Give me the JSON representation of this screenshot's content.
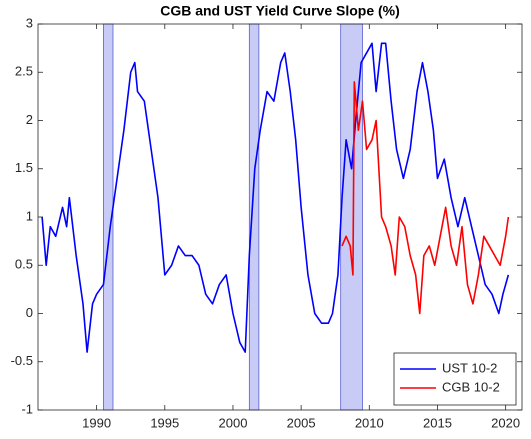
{
  "chart_data": {
    "type": "line",
    "title": "CGB and UST Yield Curve Slope (%)",
    "xlim": [
      1985.7,
      2021.2
    ],
    "ylim": [
      -1,
      3
    ],
    "xticks": [
      1990,
      1995,
      2000,
      2005,
      2010,
      2015,
      2020
    ],
    "yticks": [
      -1,
      -0.5,
      0,
      0.5,
      1,
      1.5,
      2,
      2.5,
      3
    ],
    "grid": false,
    "legend": "lower right",
    "shade_color": "#c8cbf5",
    "shaded_regions": [
      [
        1990.5,
        1991.2
      ],
      [
        2001.2,
        2001.9
      ],
      [
        2007.9,
        2009.5
      ]
    ],
    "series": [
      {
        "name": "UST 10-2",
        "color": "#0000ff",
        "x": [
          1986.0,
          1986.3,
          1986.6,
          1987.0,
          1987.5,
          1987.8,
          1988.0,
          1988.5,
          1989.0,
          1989.3,
          1989.7,
          1990.0,
          1990.5,
          1991.0,
          1991.5,
          1992.0,
          1992.5,
          1992.8,
          1993.0,
          1993.5,
          1994.0,
          1994.5,
          1995.0,
          1995.5,
          1996.0,
          1996.5,
          1997.0,
          1997.5,
          1998.0,
          1998.5,
          1999.0,
          1999.5,
          2000.0,
          2000.5,
          2000.9,
          2001.2,
          2001.6,
          2002.0,
          2002.5,
          2003.0,
          2003.5,
          2003.8,
          2004.2,
          2004.6,
          2005.0,
          2005.5,
          2006.0,
          2006.5,
          2007.0,
          2007.3,
          2007.7,
          2008.0,
          2008.3,
          2008.7,
          2009.0,
          2009.4,
          2009.8,
          2010.2,
          2010.5,
          2010.9,
          2011.2,
          2011.6,
          2012.0,
          2012.5,
          2013.0,
          2013.5,
          2013.9,
          2014.3,
          2014.7,
          2015.0,
          2015.5,
          2016.0,
          2016.5,
          2017.0,
          2017.5,
          2018.0,
          2018.5,
          2019.0,
          2019.5,
          2019.8,
          2020.2
        ],
        "values": [
          1.0,
          0.5,
          0.9,
          0.8,
          1.1,
          0.9,
          1.2,
          0.6,
          0.1,
          -0.4,
          0.1,
          0.2,
          0.3,
          0.9,
          1.4,
          1.9,
          2.5,
          2.6,
          2.3,
          2.2,
          1.7,
          1.2,
          0.4,
          0.5,
          0.7,
          0.6,
          0.6,
          0.5,
          0.2,
          0.1,
          0.3,
          0.4,
          0.0,
          -0.3,
          -0.4,
          0.6,
          1.5,
          1.9,
          2.3,
          2.2,
          2.6,
          2.7,
          2.3,
          1.8,
          1.1,
          0.4,
          0.0,
          -0.1,
          -0.1,
          0.0,
          0.4,
          1.2,
          1.8,
          1.5,
          2.0,
          2.6,
          2.7,
          2.8,
          2.3,
          2.8,
          2.8,
          2.2,
          1.7,
          1.4,
          1.7,
          2.3,
          2.6,
          2.3,
          1.9,
          1.4,
          1.6,
          1.2,
          0.9,
          1.2,
          0.9,
          0.6,
          0.3,
          0.2,
          0.0,
          0.2,
          0.4
        ]
      },
      {
        "name": "CGB 10-2",
        "color": "#ff0000",
        "x": [
          2008.0,
          2008.3,
          2008.6,
          2008.8,
          2008.9,
          2009.2,
          2009.5,
          2009.8,
          2010.2,
          2010.5,
          2010.9,
          2011.2,
          2011.6,
          2011.9,
          2012.2,
          2012.6,
          2013.0,
          2013.4,
          2013.7,
          2014.0,
          2014.4,
          2014.8,
          2015.2,
          2015.6,
          2016.0,
          2016.4,
          2016.8,
          2017.2,
          2017.6,
          2018.0,
          2018.4,
          2018.8,
          2019.2,
          2019.6,
          2020.0,
          2020.2
        ],
        "values": [
          0.7,
          0.8,
          0.7,
          0.4,
          2.4,
          1.9,
          2.2,
          1.7,
          1.8,
          2.0,
          1.0,
          0.9,
          0.7,
          0.4,
          1.0,
          0.9,
          0.6,
          0.4,
          0.0,
          0.6,
          0.7,
          0.5,
          0.8,
          1.1,
          0.7,
          0.5,
          0.9,
          0.3,
          0.1,
          0.4,
          0.8,
          0.7,
          0.6,
          0.5,
          0.8,
          1.0
        ]
      }
    ]
  }
}
